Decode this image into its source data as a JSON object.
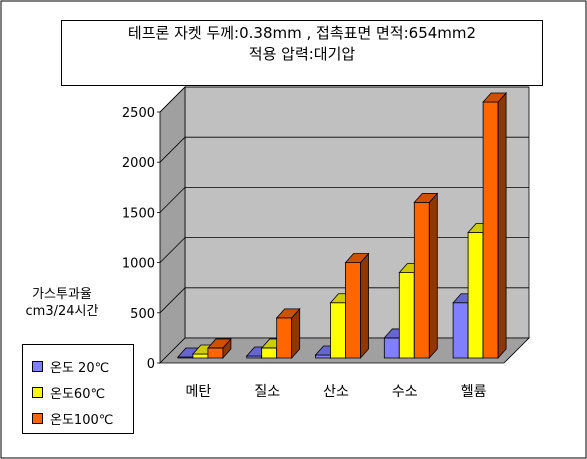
{
  "chart_data": {
    "type": "bar",
    "title_lines": [
      "테프론 자켓 두께:0.38mm , 접촉표면 면적:654mm2",
      "적용 압력:대기압"
    ],
    "ylabel_lines": [
      "가스투과율",
      "cm3/24시간"
    ],
    "xlabel": "",
    "categories": [
      "메탄",
      "질소",
      "산소",
      "수소",
      "헬륨"
    ],
    "series": [
      {
        "name": "온도 20℃",
        "color": "#8080ff",
        "values": [
          10,
          20,
          30,
          200,
          550
        ]
      },
      {
        "name": "온도60℃",
        "color": "#ffff00",
        "values": [
          40,
          100,
          550,
          850,
          1250
        ]
      },
      {
        "name": "온도100℃",
        "color": "#ff6600",
        "values": [
          100,
          400,
          950,
          1550,
          2550
        ]
      }
    ],
    "yticks": [
      0,
      500,
      1000,
      1500,
      2000,
      2500
    ],
    "ylim": [
      0,
      2500
    ],
    "grid": true,
    "legend": "bottom-left",
    "style": "3d-clustered-bar"
  }
}
